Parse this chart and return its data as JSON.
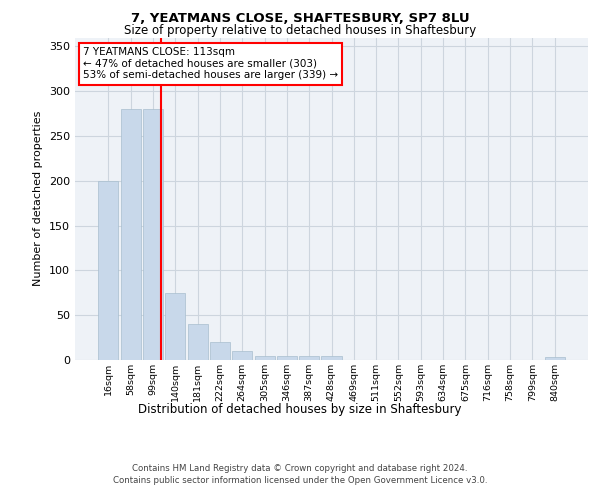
{
  "title1": "7, YEATMANS CLOSE, SHAFTESBURY, SP7 8LU",
  "title2": "Size of property relative to detached houses in Shaftesbury",
  "xlabel": "Distribution of detached houses by size in Shaftesbury",
  "ylabel": "Number of detached properties",
  "bar_labels": [
    "16sqm",
    "58sqm",
    "99sqm",
    "140sqm",
    "181sqm",
    "222sqm",
    "264sqm",
    "305sqm",
    "346sqm",
    "387sqm",
    "428sqm",
    "469sqm",
    "511sqm",
    "552sqm",
    "593sqm",
    "634sqm",
    "675sqm",
    "716sqm",
    "758sqm",
    "799sqm",
    "840sqm"
  ],
  "bar_values": [
    200,
    280,
    280,
    75,
    40,
    20,
    10,
    5,
    4,
    4,
    4,
    0,
    0,
    0,
    0,
    0,
    0,
    0,
    0,
    0,
    3
  ],
  "bar_color": "#c8d8ea",
  "bar_edge_color": "#a8bece",
  "ylim": [
    0,
    360
  ],
  "yticks": [
    0,
    50,
    100,
    150,
    200,
    250,
    300,
    350
  ],
  "annotation_title": "7 YEATMANS CLOSE: 113sqm",
  "annotation_line1": "← 47% of detached houses are smaller (303)",
  "annotation_line2": "53% of semi-detached houses are larger (339) →",
  "footer1": "Contains HM Land Registry data © Crown copyright and database right 2024.",
  "footer2": "Contains public sector information licensed under the Open Government Licence v3.0.",
  "bg_color": "#eef2f7",
  "grid_color": "#cdd5de"
}
